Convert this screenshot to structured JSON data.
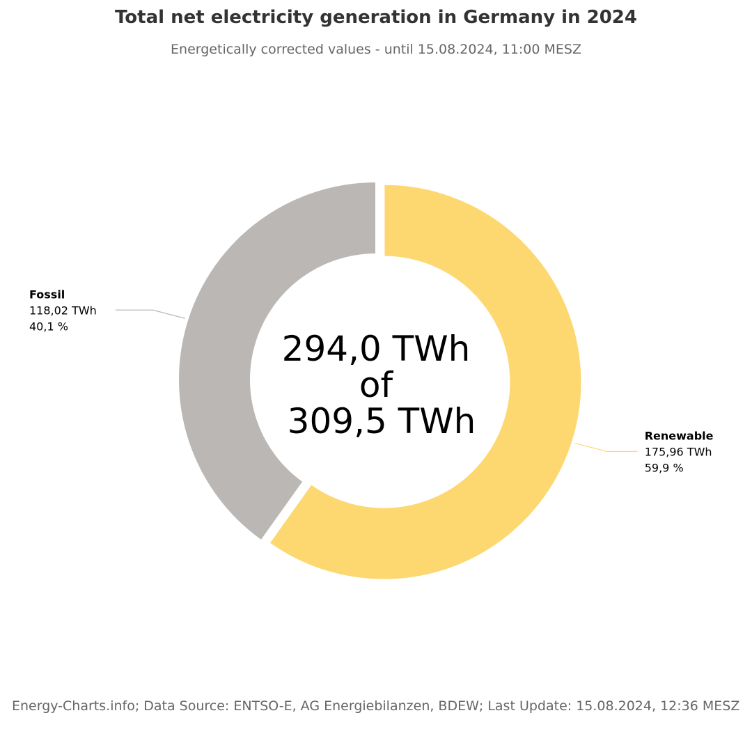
{
  "title": "Total net electricity generation in Germany in 2024",
  "subtitle": "Energetically corrected values - until 15.08.2024, 11:00 MESZ",
  "center": {
    "line1": "294,0 TWh",
    "line2": "of",
    "line3": "309,5 TWh"
  },
  "credits": "Energy-Charts.info; Data Source: ENTSO-E, AG Energiebilanzen, BDEW; Last Update: 15.08.2024, 12:36 MESZ",
  "chart_data": {
    "type": "pie",
    "variant": "donut",
    "title": "Total net electricity generation in Germany in 2024",
    "subtitle": "Energetically corrected values - until 15.08.2024, 11:00 MESZ",
    "unit": "TWh",
    "total": 294.0,
    "reference_total": 309.5,
    "start_angle_deg": 0,
    "slices": [
      {
        "name": "Renewable",
        "value": 175.96,
        "value_label": "175,96 TWh",
        "percent_label": "59,9 %",
        "color": "#fdd871",
        "sliced": true,
        "label_side": "right"
      },
      {
        "name": "Fossil",
        "value": 118.02,
        "value_label": "118,02 TWh",
        "percent_label": "40,1 %",
        "color": "#bab7b4",
        "sliced": false,
        "label_side": "left"
      }
    ]
  }
}
